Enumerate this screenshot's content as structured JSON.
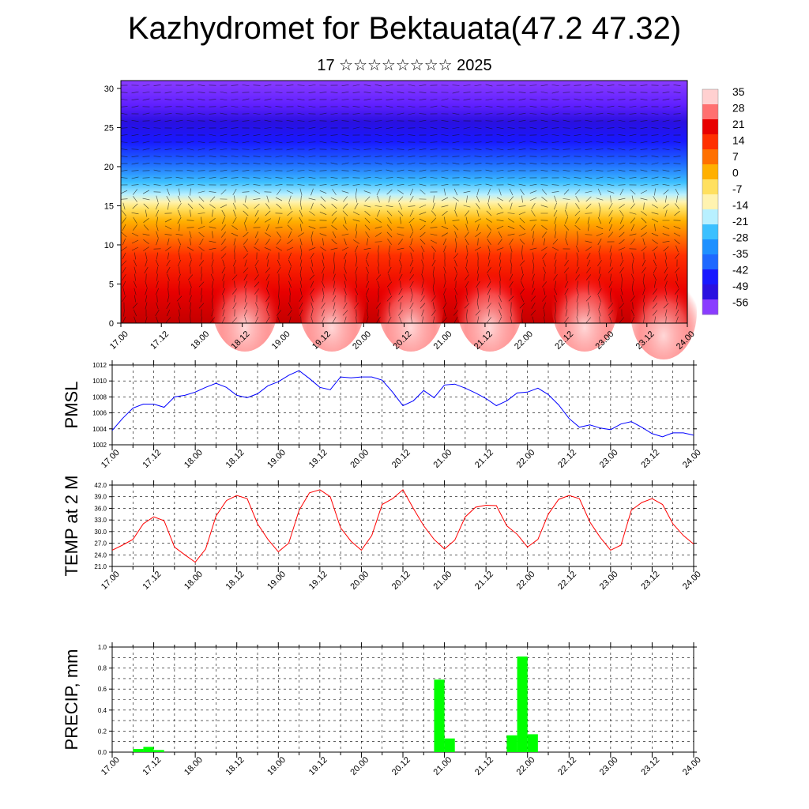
{
  "title": "Kazhydromet for Bektauata(47.2 47.32)",
  "subtitle": "17 ☆☆☆☆☆☆☆☆ 2025",
  "time_labels": [
    "17.00",
    "17.12",
    "18.00",
    "18.12",
    "19.00",
    "19.12",
    "20.00",
    "20.12",
    "21.00",
    "21.12",
    "22.00",
    "22.12",
    "23.00",
    "23.12",
    "24.00"
  ],
  "colorbar": {
    "labels": [
      "35",
      "28",
      "21",
      "14",
      "7",
      "0",
      "-7",
      "-14",
      "-21",
      "-28",
      "-35",
      "-42",
      "-49",
      "-56"
    ]
  },
  "chart_data": [
    {
      "type": "heatmap",
      "name": "cross-section",
      "yticks": [
        "0",
        "5",
        "10",
        "15",
        "20",
        "25",
        "30"
      ],
      "ylim": [
        0,
        31
      ]
    },
    {
      "type": "line",
      "ylabel": "PMSL",
      "ylim": [
        1002,
        1012
      ],
      "yticks": [
        "1002",
        "1004",
        "1006",
        "1008",
        "1010",
        "1012"
      ],
      "color": "#0000ff",
      "values": [
        1003.8,
        1005.3,
        1006.6,
        1007.1,
        1007.1,
        1006.7,
        1008.0,
        1008.2,
        1008.6,
        1009.2,
        1009.7,
        1009.2,
        1008.2,
        1007.9,
        1008.4,
        1009.4,
        1009.9,
        1010.7,
        1011.3,
        1010.3,
        1009.2,
        1008.9,
        1010.5,
        1010.4,
        1010.5,
        1010.5,
        1010.1,
        1008.6,
        1006.9,
        1007.5,
        1008.8,
        1007.9,
        1009.5,
        1009.6,
        1009.1,
        1008.5,
        1007.8,
        1006.9,
        1007.5,
        1008.5,
        1008.6,
        1009.1,
        1008.3,
        1007.0,
        1005.3,
        1004.2,
        1004.5,
        1004.1,
        1003.9,
        1004.6,
        1004.9,
        1004.2,
        1003.4,
        1003.0,
        1003.5,
        1003.5,
        1003.2
      ],
      "x_start": "17.00",
      "x_step_hours": 3
    },
    {
      "type": "line",
      "ylabel": "TEMP at 2 M",
      "ylim": [
        21.0,
        42.0
      ],
      "yticks": [
        "21.0",
        "24.0",
        "27.0",
        "30.0",
        "33.0",
        "36.0",
        "39.0",
        "42.0"
      ],
      "color": "#ff0000",
      "values": [
        25.2,
        26.5,
        28.0,
        32.0,
        33.8,
        32.8,
        26.0,
        24.0,
        22.1,
        25.5,
        34.0,
        38.0,
        39.3,
        38.5,
        32.0,
        28.0,
        24.8,
        27.0,
        35.5,
        40.0,
        40.8,
        39.0,
        31.0,
        27.5,
        25.2,
        29.0,
        37.0,
        38.5,
        40.8,
        36.0,
        31.5,
        28.0,
        25.5,
        27.8,
        33.8,
        36.3,
        36.8,
        36.7,
        31.5,
        29.3,
        26.0,
        28.0,
        34.5,
        38.3,
        39.3,
        38.5,
        32.5,
        28.5,
        25.2,
        26.5,
        35.5,
        37.5,
        38.5,
        37.0,
        32.0,
        29.0,
        26.8
      ],
      "x_start": "17.00",
      "x_step_hours": 3
    },
    {
      "type": "bar",
      "ylabel": "PRECIP, mm",
      "ylim": [
        0,
        1.0
      ],
      "yticks": [
        "0.0",
        "0.2",
        "0.4",
        "0.6",
        "0.8",
        "1.0"
      ],
      "color": "#00ff00",
      "bars": [
        {
          "hour": 9,
          "value": 0.03
        },
        {
          "hour": 12,
          "value": 0.05
        },
        {
          "hour": 15,
          "value": 0.02
        },
        {
          "hour": 96,
          "value": 0.69
        },
        {
          "hour": 99,
          "value": 0.13
        },
        {
          "hour": 117,
          "value": 0.16
        },
        {
          "hour": 120,
          "value": 0.91
        },
        {
          "hour": 123,
          "value": 0.17
        }
      ]
    }
  ]
}
